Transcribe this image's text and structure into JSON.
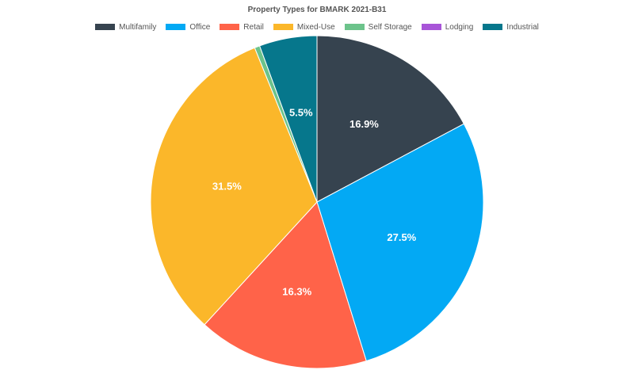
{
  "chart_data": {
    "type": "pie",
    "title": "Property Types for BMARK 2021-B31",
    "legend_position": "top",
    "slices": [
      {
        "name": "Multifamily",
        "value": 16.9,
        "label": "16.9%",
        "color": "#36434f"
      },
      {
        "name": "Office",
        "value": 27.5,
        "label": "27.5%",
        "color": "#03a9f4"
      },
      {
        "name": "Retail",
        "value": 16.3,
        "label": "16.3%",
        "color": "#ff6349"
      },
      {
        "name": "Mixed-Use",
        "value": 31.5,
        "label": "31.5%",
        "color": "#fbb72a"
      },
      {
        "name": "Self Storage",
        "value": 0.5,
        "label": "",
        "color": "#6cc38b"
      },
      {
        "name": "Lodging",
        "value": 0.0,
        "label": "",
        "color": "#a855d8"
      },
      {
        "name": "Industrial",
        "value": 5.5,
        "label": "5.5%",
        "color": "#06778c"
      }
    ]
  }
}
